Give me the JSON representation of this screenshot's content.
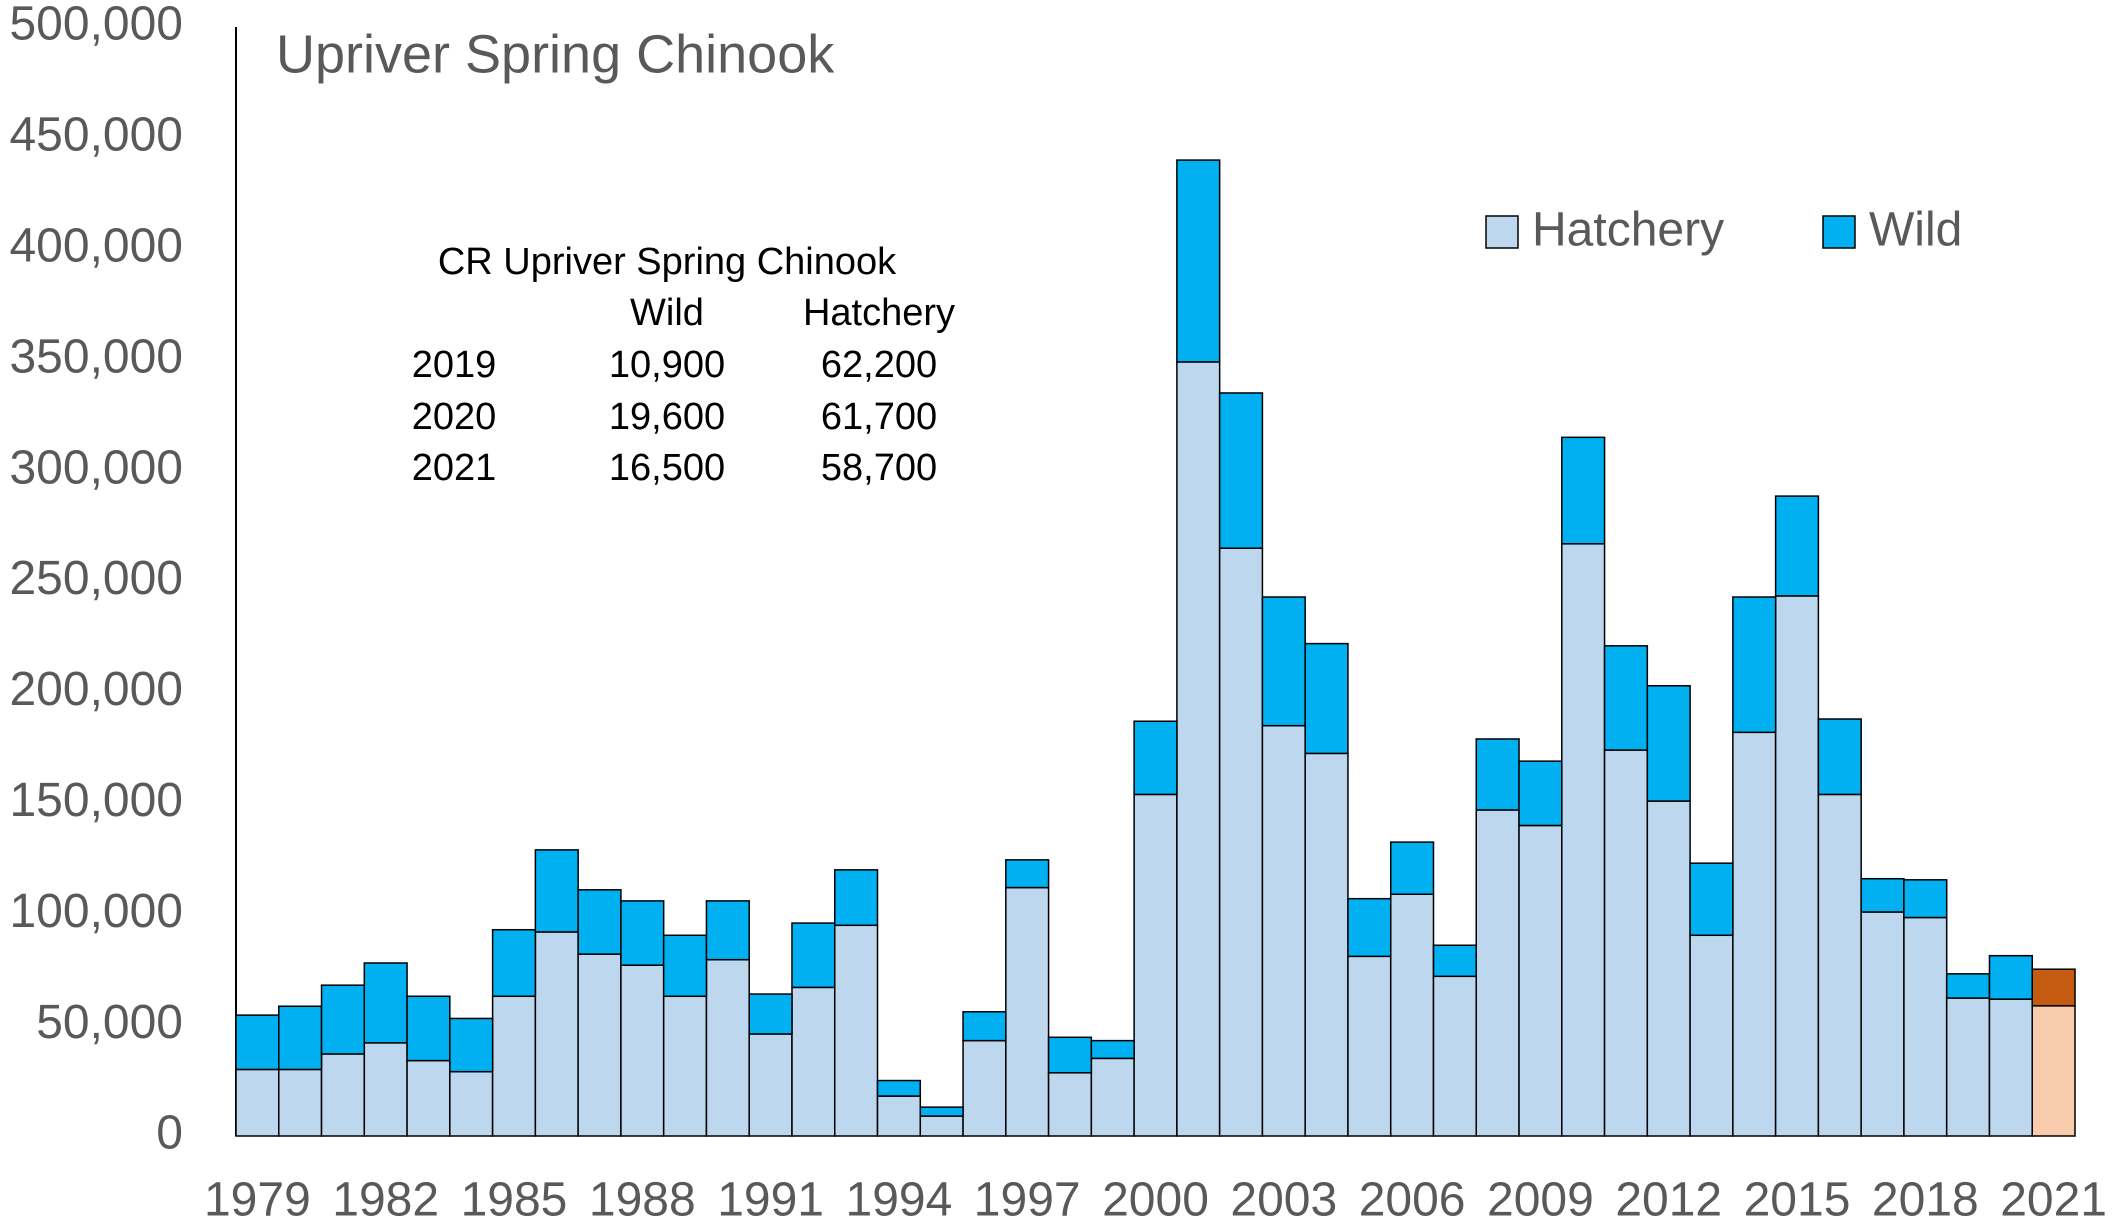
{
  "chart_data": {
    "type": "stacked_bar",
    "title": "Upriver Spring Chinook",
    "categories": [
      "1979",
      null,
      null,
      "1982",
      null,
      null,
      "1985",
      null,
      null,
      "1988",
      null,
      null,
      "1991",
      null,
      null,
      "1994",
      null,
      null,
      "1997",
      null,
      null,
      "2000",
      null,
      null,
      "2003",
      null,
      null,
      "2006",
      null,
      null,
      "2009",
      null,
      null,
      "2012",
      null,
      null,
      "2015",
      null,
      null,
      "2018",
      null,
      null,
      "2021"
    ],
    "series": [
      {
        "name": "Hatchery",
        "color": "#bdd7ee",
        "values": [
          30000,
          30000,
          37000,
          42000,
          34000,
          29000,
          63000,
          92000,
          82000,
          77000,
          63000,
          79500,
          46000,
          67000,
          95000,
          18000,
          9000,
          43000,
          112000,
          28500,
          35000,
          154000,
          349000,
          265000,
          185000,
          172500,
          81000,
          109000,
          72000,
          147000,
          140000,
          267000,
          174000,
          151000,
          90500,
          182000,
          243500,
          154000,
          101000,
          98500,
          62200,
          61700,
          58700
        ],
        "colors": [
          "#bdd7ee",
          "#bdd7ee",
          "#bdd7ee",
          "#bdd7ee",
          "#bdd7ee",
          "#bdd7ee",
          "#bdd7ee",
          "#bdd7ee",
          "#bdd7ee",
          "#bdd7ee",
          "#bdd7ee",
          "#bdd7ee",
          "#bdd7ee",
          "#bdd7ee",
          "#bdd7ee",
          "#bdd7ee",
          "#bdd7ee",
          "#bdd7ee",
          "#bdd7ee",
          "#bdd7ee",
          "#bdd7ee",
          "#bdd7ee",
          "#bdd7ee",
          "#bdd7ee",
          "#bdd7ee",
          "#bdd7ee",
          "#bdd7ee",
          "#bdd7ee",
          "#bdd7ee",
          "#bdd7ee",
          "#bdd7ee",
          "#bdd7ee",
          "#bdd7ee",
          "#bdd7ee",
          "#bdd7ee",
          "#bdd7ee",
          "#bdd7ee",
          "#bdd7ee",
          "#bdd7ee",
          "#bdd7ee",
          "#bdd7ee",
          "#bdd7ee",
          "#f8cbad"
        ]
      },
      {
        "name": "Wild",
        "color": "#00b0f0",
        "values": [
          24500,
          28500,
          31000,
          36000,
          29000,
          24000,
          30000,
          37000,
          29000,
          29000,
          27500,
          26500,
          18000,
          29000,
          25000,
          7000,
          4000,
          13000,
          12500,
          16000,
          8000,
          33000,
          91000,
          70000,
          58000,
          49500,
          26000,
          23500,
          14000,
          32000,
          29000,
          48000,
          47000,
          52000,
          32500,
          61000,
          45000,
          34000,
          15000,
          17000,
          10900,
          19600,
          16500
        ],
        "colors": [
          "#00b0f0",
          "#00b0f0",
          "#00b0f0",
          "#00b0f0",
          "#00b0f0",
          "#00b0f0",
          "#00b0f0",
          "#00b0f0",
          "#00b0f0",
          "#00b0f0",
          "#00b0f0",
          "#00b0f0",
          "#00b0f0",
          "#00b0f0",
          "#00b0f0",
          "#00b0f0",
          "#00b0f0",
          "#00b0f0",
          "#00b0f0",
          "#00b0f0",
          "#00b0f0",
          "#00b0f0",
          "#00b0f0",
          "#00b0f0",
          "#00b0f0",
          "#00b0f0",
          "#00b0f0",
          "#00b0f0",
          "#00b0f0",
          "#00b0f0",
          "#00b0f0",
          "#00b0f0",
          "#00b0f0",
          "#00b0f0",
          "#00b0f0",
          "#00b0f0",
          "#00b0f0",
          "#00b0f0",
          "#00b0f0",
          "#00b0f0",
          "#00b0f0",
          "#00b0f0",
          "#c55a11"
        ]
      }
    ],
    "ylim": [
      0,
      500000
    ],
    "yticks": [
      0,
      {
        "value": 50000,
        "label": "50,000"
      },
      {
        "value": 100000,
        "label": "100,000"
      },
      {
        "value": 150000,
        "label": "150,000"
      },
      {
        "value": 200000,
        "label": "200,000"
      },
      {
        "value": 250000,
        "label": "250,000"
      },
      {
        "value": 300000,
        "label": "300,000"
      },
      {
        "value": 350000,
        "label": "350,000"
      },
      {
        "value": 400000,
        "label": "400,000"
      },
      {
        "value": 450000,
        "label": "450,000"
      },
      {
        "value": 500000,
        "label": "500,000"
      }
    ],
    "grid": false,
    "legend": "top-right",
    "table": {
      "title": "CR Upriver Spring Chinook",
      "header": [
        "Wild",
        "Hatchery"
      ],
      "rows": [
        [
          "2019",
          "10,900",
          "62,200"
        ],
        [
          "2020",
          "19,600",
          "61,700"
        ],
        [
          "2021",
          "16,500",
          "58,700"
        ]
      ]
    }
  }
}
